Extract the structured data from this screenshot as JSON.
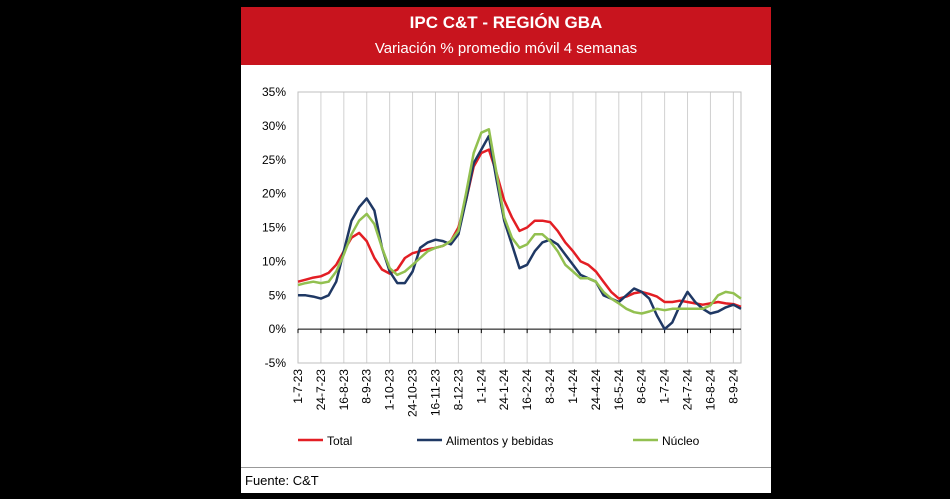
{
  "header": {
    "title": "IPC C&T - REGIÓN GBA",
    "subtitle": "Variación % promedio móvil 4 semanas"
  },
  "footer": {
    "source": "Fuente: C&T"
  },
  "colors": {
    "header_bg": "#c8141e",
    "total": "#e31e24",
    "alimentos": "#1f3864",
    "nucleo": "#92c050"
  },
  "chart_data": {
    "type": "line",
    "title": "IPC C&T - REGIÓN GBA",
    "subtitle": "Variación % promedio móvil 4 semanas",
    "yticks": [
      "35%",
      "30%",
      "25%",
      "20%",
      "15%",
      "10%",
      "5%",
      "0%",
      "-5%"
    ],
    "ylim": [
      -5,
      35
    ],
    "xticks": [
      "1-7-23",
      "24-7-23",
      "16-8-23",
      "8-9-23",
      "1-10-23",
      "24-10-23",
      "16-11-23",
      "8-12-23",
      "1-1-24",
      "24-1-24",
      "16-2-24",
      "8-3-24",
      "1-4-24",
      "24-4-24",
      "16-5-24",
      "8-6-24",
      "1-7-24",
      "24-7-24",
      "16-8-24",
      "8-9-24"
    ],
    "x": [
      "1-7-23",
      "8-7-23",
      "16-7-23",
      "24-7-23",
      "1-8-23",
      "8-8-23",
      "16-8-23",
      "24-8-23",
      "1-9-23",
      "8-9-23",
      "16-9-23",
      "24-9-23",
      "1-10-23",
      "8-10-23",
      "16-10-23",
      "24-10-23",
      "1-11-23",
      "8-11-23",
      "16-11-23",
      "24-11-23",
      "1-12-23",
      "8-12-23",
      "16-12-23",
      "24-12-23",
      "1-1-24",
      "8-1-24",
      "16-1-24",
      "24-1-24",
      "1-2-24",
      "8-2-24",
      "16-2-24",
      "24-2-24",
      "1-3-24",
      "8-3-24",
      "16-3-24",
      "24-3-24",
      "1-4-24",
      "8-4-24",
      "16-4-24",
      "24-4-24",
      "1-5-24",
      "8-5-24",
      "16-5-24",
      "24-5-24",
      "1-6-24",
      "8-6-24",
      "16-6-24",
      "24-6-24",
      "1-7-24",
      "8-7-24",
      "16-7-24",
      "24-7-24",
      "1-8-24",
      "8-8-24",
      "16-8-24",
      "24-8-24",
      "1-9-24",
      "8-9-24",
      "16-9-24"
    ],
    "series": [
      {
        "name": "Total",
        "color": "#e31e24",
        "values": [
          7,
          7.3,
          7.6,
          7.8,
          8.3,
          9.5,
          11.5,
          13.5,
          14.2,
          13,
          10.5,
          8.8,
          8.2,
          8.8,
          10.5,
          11.2,
          11.5,
          11.8,
          12,
          12.3,
          13,
          15,
          19,
          24,
          26,
          26.5,
          23,
          19,
          16.5,
          14.5,
          15,
          16,
          16,
          15.8,
          14.5,
          12.8,
          11.5,
          10,
          9.5,
          8.5,
          7,
          5.5,
          4.5,
          4.8,
          5.3,
          5.5,
          5.2,
          4.8,
          4,
          4,
          4.2,
          4,
          3.8,
          3.6,
          3.8,
          4,
          3.8,
          3.7,
          3.3
        ]
      },
      {
        "name": "Alimentos y bebidas",
        "color": "#1f3864",
        "values": [
          5,
          5,
          4.8,
          4.5,
          5,
          7,
          11.5,
          16,
          18,
          19.3,
          17.5,
          12,
          8.5,
          6.8,
          6.8,
          8.5,
          12,
          12.8,
          13.2,
          13,
          12.5,
          14,
          19,
          24.5,
          26.5,
          28.5,
          22,
          16,
          12.5,
          9,
          9.5,
          11.5,
          12.8,
          13.2,
          12.5,
          11,
          9.5,
          8,
          7.5,
          7,
          5,
          4.5,
          4,
          5,
          6,
          5.5,
          4.5,
          2,
          0,
          1,
          3.5,
          5.5,
          4,
          3,
          2.3,
          2.6,
          3.2,
          3.6,
          3
        ]
      },
      {
        "name": "Núcleo",
        "color": "#92c050",
        "values": [
          6.5,
          6.8,
          7,
          6.8,
          7,
          8.5,
          11,
          14,
          16,
          17,
          15.5,
          12,
          9,
          8,
          8.5,
          9.5,
          10.5,
          11.5,
          12,
          12.3,
          13,
          14.5,
          20,
          26,
          29,
          29.5,
          23,
          16.5,
          13.5,
          12,
          12.5,
          14,
          14,
          13,
          11.5,
          9.5,
          8.5,
          7.5,
          7.5,
          7,
          5.5,
          4.5,
          3.8,
          3,
          2.5,
          2.3,
          2.6,
          3,
          2.8,
          3,
          3,
          3,
          3,
          3,
          3.5,
          5,
          5.5,
          5.3,
          4.5
        ]
      }
    ],
    "legend": [
      "Total",
      "Alimentos y bebidas",
      "Núcleo"
    ],
    "legend_position": "bottom",
    "grid": "vertical"
  }
}
